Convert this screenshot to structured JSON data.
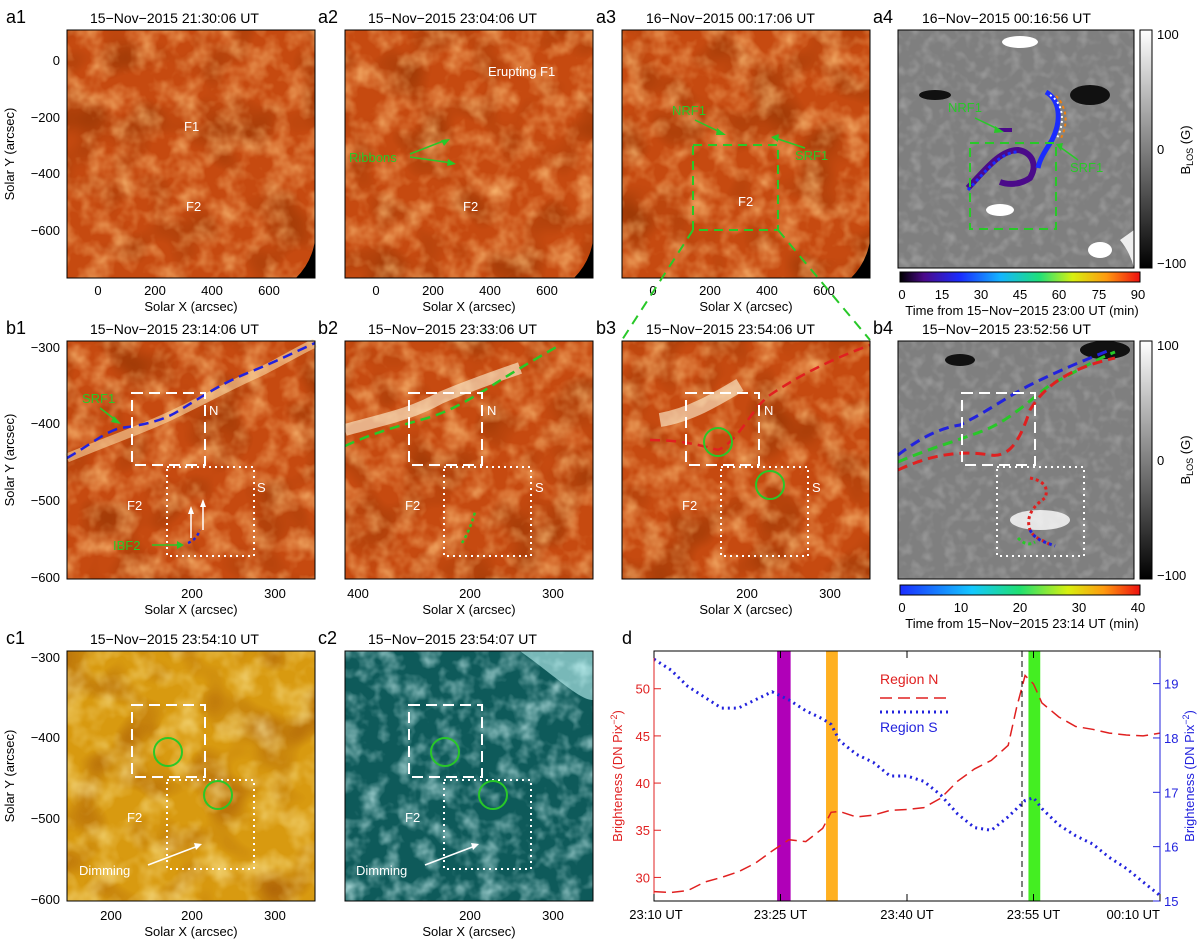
{
  "panels": {
    "a1": {
      "label": "a1",
      "time": "15−Nov−2015 21:30:06 UT",
      "notes": [
        "F1",
        "F2"
      ]
    },
    "a2": {
      "label": "a2",
      "time": "15−Nov−2015 23:04:06 UT",
      "notes": [
        "Erupting F1",
        "Ribbons",
        "F2"
      ]
    },
    "a3": {
      "label": "a3",
      "time": "16−Nov−2015 00:17:06 UT",
      "notes": [
        "NRF1",
        "SRF1",
        "F2"
      ]
    },
    "a4": {
      "label": "a4",
      "time": "16−Nov−2015 00:16:56 UT",
      "notes": [
        "NRF1",
        "SRF1"
      ]
    },
    "b1": {
      "label": "b1",
      "time": "15−Nov−2015 23:14:06 UT",
      "notes": [
        "SRF1",
        "N",
        "S",
        "F2",
        "IBF2"
      ]
    },
    "b2": {
      "label": "b2",
      "time": "15−Nov−2015 23:33:06 UT",
      "notes": [
        "N",
        "S",
        "F2"
      ]
    },
    "b3": {
      "label": "b3",
      "time": "15−Nov−2015 23:54:06 UT",
      "notes": [
        "N",
        "S",
        "F2"
      ]
    },
    "b4": {
      "label": "b4",
      "time": "15−Nov−2015 23:52:56 UT",
      "notes": []
    },
    "c1": {
      "label": "c1",
      "time": "15−Nov−2015 23:54:10 UT",
      "notes": [
        "F2",
        "Dimming"
      ]
    },
    "c2": {
      "label": "c2",
      "time": "15−Nov−2015 23:54:07 UT",
      "notes": [
        "F2",
        "Dimming"
      ]
    },
    "d": {
      "label": "d",
      "time": "",
      "notes": []
    }
  },
  "axes": {
    "solar_x": "Solar X (arcsec)",
    "solar_y": "Solar Y (arcsec)",
    "top_x_ticks": [
      "0",
      "200",
      "400",
      "600"
    ],
    "top_y_ticks": [
      "0",
      "−200",
      "−400",
      "−600"
    ],
    "zoom_x_ticks": [
      "200",
      "300",
      "400"
    ],
    "zoom_y_ticks": [
      "−300",
      "−400",
      "−500",
      "−600"
    ],
    "blos_label": "B",
    "blos_sub": "LOS",
    "blos_unit": " (G)",
    "blos_ticks": [
      "100",
      "0",
      "−100"
    ]
  },
  "colorbars": {
    "a4": {
      "title": "Time from 15−Nov−2015 23:00 UT (min)",
      "ticks": [
        "0",
        "15",
        "30",
        "45",
        "60",
        "75",
        "90"
      ]
    },
    "b4": {
      "title": "Time from 15−Nov−2015 23:14 UT (min)",
      "ticks": [
        "0",
        "10",
        "20",
        "30",
        "40"
      ]
    }
  },
  "colors": {
    "aia304": "#c64a10",
    "aia171": "#d89a10",
    "aia131": "#3aa6a4",
    "green": "#28c828",
    "blue": "#2222dd",
    "red": "#e02020",
    "purple": "#b000b8",
    "orange": "#ffb020",
    "lime": "#44ee22"
  },
  "chart_data": {
    "type": "line",
    "title": "",
    "xlabel": "",
    "x_ticks": [
      "23:10 UT",
      "23:25 UT",
      "23:40 UT",
      "23:55 UT",
      "00:10 UT"
    ],
    "x_minutes": [
      0,
      15,
      30,
      45,
      60
    ],
    "ylabel_left": "Brighteness (DN Pix",
    "ylabel_left_unit": ")",
    "ylabel_right": "Brighteness (DN Pix",
    "ylabel_right_unit": ")",
    "ylim_left": [
      27.5,
      54
    ],
    "ylim_right": [
      15,
      19.6
    ],
    "left_ticks": [
      30,
      35,
      40,
      45,
      50
    ],
    "right_ticks": [
      15,
      16,
      17,
      18,
      19
    ],
    "legend": [
      "Region N",
      "Region S"
    ],
    "bands": [
      {
        "color": "purple",
        "start": 14.6,
        "end": 16.2
      },
      {
        "color": "orange",
        "start": 20.4,
        "end": 21.8
      },
      {
        "color": "lime",
        "start": 44.4,
        "end": 45.8
      }
    ],
    "series": [
      {
        "name": "Region N",
        "axis": "left",
        "style": "dashed",
        "x": [
          0,
          2,
          4,
          6,
          8,
          10,
          12,
          14,
          16,
          18,
          20,
          21,
          22,
          24,
          26,
          28,
          30,
          32,
          34,
          36,
          38,
          40,
          42,
          43,
          44,
          45,
          46,
          48,
          50,
          52,
          54,
          56,
          58,
          60
        ],
        "y": [
          28.5,
          28.4,
          28.6,
          29.5,
          30.0,
          30.6,
          31.5,
          32.8,
          34.0,
          33.8,
          35.2,
          36.9,
          37.0,
          36.4,
          36.6,
          37.1,
          37.2,
          37.4,
          38.4,
          40.2,
          41.5,
          42.4,
          44.0,
          48.0,
          51.4,
          50.5,
          48.5,
          47.0,
          46.0,
          45.7,
          45.3,
          45.1,
          45.0,
          45.3
        ]
      },
      {
        "name": "Region S",
        "axis": "right",
        "style": "dotted",
        "x": [
          0,
          2,
          4,
          6,
          8,
          10,
          12,
          14,
          16,
          18,
          20,
          21,
          22,
          24,
          26,
          28,
          30,
          32,
          34,
          36,
          38,
          40,
          42,
          44,
          45,
          46,
          48,
          50,
          52,
          54,
          56,
          58,
          60
        ],
        "y": [
          19.45,
          19.25,
          18.95,
          18.75,
          18.55,
          18.55,
          18.7,
          18.85,
          18.7,
          18.5,
          18.35,
          18.25,
          17.95,
          17.7,
          17.55,
          17.3,
          17.3,
          17.2,
          16.95,
          16.6,
          16.35,
          16.3,
          16.55,
          16.85,
          16.9,
          16.7,
          16.4,
          16.2,
          16.05,
          15.8,
          15.6,
          15.35,
          15.1
        ]
      }
    ]
  }
}
